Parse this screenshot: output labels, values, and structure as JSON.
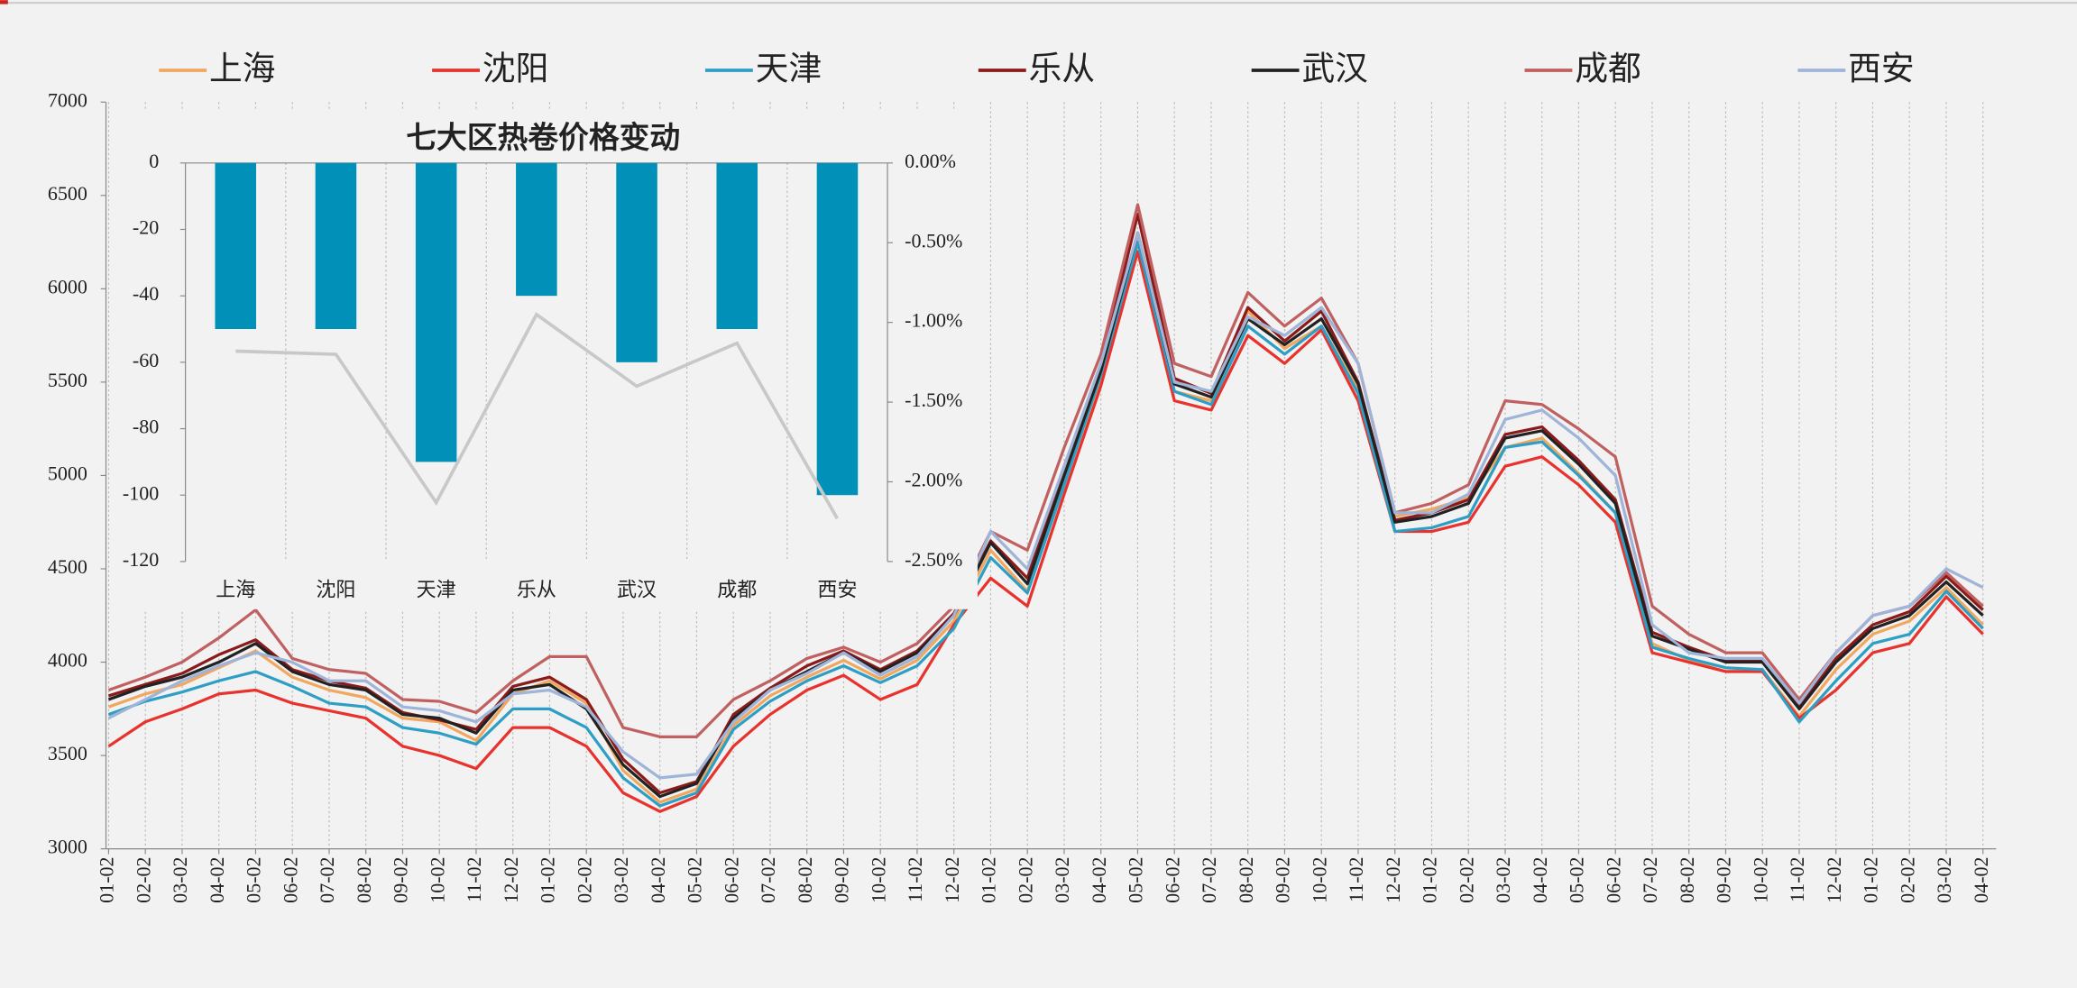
{
  "chart_data": [
    {
      "type": "line",
      "categories": [
        "01-02",
        "02-02",
        "03-02",
        "04-02",
        "05-02",
        "06-02",
        "07-02",
        "08-02",
        "09-02",
        "10-02",
        "11-02",
        "12-02",
        "01-02",
        "02-02",
        "03-02",
        "04-02",
        "05-02",
        "06-02",
        "07-02",
        "08-02",
        "09-02",
        "10-02",
        "11-02",
        "12-02",
        "01-02",
        "02-02",
        "03-02",
        "04-02",
        "05-02",
        "06-02",
        "07-02",
        "08-02",
        "09-02",
        "10-02",
        "11-02",
        "12-02",
        "01-02",
        "02-02",
        "03-02",
        "04-02",
        "05-02",
        "06-02",
        "07-02",
        "08-02",
        "09-02",
        "10-02",
        "11-02",
        "12-02",
        "01-02",
        "02-02",
        "03-02",
        "04-02"
      ],
      "ylim": [
        3000,
        7000
      ],
      "yticks": [
        3000,
        3500,
        4000,
        4500,
        5000,
        5500,
        6000,
        6500,
        7000
      ],
      "grid": "x",
      "legend": "top",
      "series": [
        {
          "name": "上海",
          "color": "#f0a860",
          "values": [
            3760,
            3830,
            3880,
            3970,
            4060,
            3920,
            3850,
            3810,
            3700,
            3680,
            3580,
            3830,
            3900,
            3780,
            3420,
            3250,
            3320,
            3660,
            3820,
            3920,
            4010,
            3910,
            4010,
            4220,
            4600,
            4380,
            4960,
            5520,
            6250,
            5450,
            5400,
            5880,
            5680,
            5800,
            5460,
            4780,
            4820,
            4880,
            5150,
            5200,
            5010,
            4800,
            4100,
            4010,
            3950,
            3960,
            3710,
            3960,
            4150,
            4220,
            4400,
            4200
          ]
        },
        {
          "name": "沈阳",
          "color": "#e8322d",
          "values": [
            3550,
            3680,
            3750,
            3830,
            3850,
            3780,
            3740,
            3700,
            3550,
            3500,
            3430,
            3650,
            3650,
            3550,
            3300,
            3200,
            3280,
            3550,
            3720,
            3850,
            3930,
            3800,
            3880,
            4200,
            4450,
            4300,
            4900,
            5480,
            6200,
            5400,
            5350,
            5750,
            5600,
            5780,
            5400,
            4700,
            4700,
            4750,
            5050,
            5100,
            4950,
            4750,
            4050,
            4000,
            3950,
            3950,
            3700,
            3850,
            4050,
            4100,
            4350,
            4150
          ]
        },
        {
          "name": "天津",
          "color": "#2e9ec4",
          "values": [
            3720,
            3790,
            3840,
            3900,
            3950,
            3870,
            3780,
            3760,
            3650,
            3620,
            3560,
            3750,
            3750,
            3650,
            3380,
            3230,
            3300,
            3640,
            3790,
            3900,
            3980,
            3890,
            3980,
            4180,
            4560,
            4370,
            4950,
            5540,
            6250,
            5450,
            5380,
            5800,
            5650,
            5800,
            5440,
            4700,
            4720,
            4780,
            5150,
            5180,
            5000,
            4800,
            4080,
            4020,
            3970,
            3960,
            3680,
            3900,
            4100,
            4150,
            4380,
            4180
          ]
        },
        {
          "name": "乐从",
          "color": "#8b1a1a",
          "values": [
            3820,
            3880,
            3940,
            4040,
            4120,
            3960,
            3900,
            3860,
            3730,
            3690,
            3640,
            3870,
            3920,
            3800,
            3480,
            3300,
            3360,
            3720,
            3860,
            3980,
            4060,
            3960,
            4060,
            4260,
            4650,
            4450,
            5050,
            5580,
            6400,
            5520,
            5440,
            5900,
            5720,
            5880,
            5500,
            4760,
            4800,
            4870,
            5220,
            5260,
            5080,
            4870,
            4160,
            4080,
            4010,
            4010,
            3760,
            4020,
            4200,
            4270,
            4460,
            4280
          ]
        },
        {
          "name": "武汉",
          "color": "#222222",
          "values": [
            3800,
            3870,
            3920,
            4000,
            4100,
            3950,
            3880,
            3850,
            3720,
            3700,
            3620,
            3850,
            3880,
            3750,
            3450,
            3280,
            3350,
            3700,
            3850,
            3950,
            4050,
            3950,
            4050,
            4250,
            4640,
            4420,
            5000,
            5560,
            6300,
            5490,
            5420,
            5840,
            5700,
            5840,
            5490,
            4750,
            4780,
            4850,
            5200,
            5240,
            5060,
            4850,
            4140,
            4070,
            4000,
            4000,
            3750,
            4000,
            4180,
            4250,
            4430,
            4250
          ]
        },
        {
          "name": "成都",
          "color": "#c06060",
          "values": [
            3850,
            3920,
            4000,
            4130,
            4280,
            4020,
            3960,
            3940,
            3800,
            3790,
            3730,
            3900,
            4030,
            4030,
            3650,
            3600,
            3600,
            3800,
            3900,
            4020,
            4080,
            4000,
            4100,
            4300,
            4700,
            4600,
            5150,
            5650,
            6450,
            5600,
            5530,
            5980,
            5800,
            5950,
            5600,
            4800,
            4850,
            4950,
            5400,
            5380,
            5250,
            5100,
            4300,
            4150,
            4050,
            4050,
            3800,
            4050,
            4250,
            4300,
            4480,
            4300
          ]
        },
        {
          "name": "西安",
          "color": "#9eb4d8",
          "values": [
            3700,
            3800,
            3900,
            3980,
            4050,
            4000,
            3900,
            3900,
            3760,
            3740,
            3680,
            3830,
            3850,
            3760,
            3520,
            3380,
            3400,
            3680,
            3850,
            3940,
            4050,
            3930,
            4030,
            4250,
            4700,
            4500,
            5050,
            5600,
            6300,
            5500,
            5450,
            5850,
            5750,
            5900,
            5600,
            4800,
            4800,
            4900,
            5300,
            5350,
            5200,
            5000,
            4200,
            4050,
            4020,
            4020,
            3780,
            4050,
            4250,
            4300,
            4500,
            4400
          ]
        }
      ]
    },
    {
      "type": "bar",
      "title": "七大区热卷价格变动",
      "categories": [
        "上海",
        "沈阳",
        "天津",
        "乐从",
        "武汉",
        "成都",
        "西安"
      ],
      "ylim": [
        -120,
        0
      ],
      "yticks": [
        -120,
        -100,
        -80,
        -60,
        -40,
        -20,
        0
      ],
      "y2lim": [
        -2.5,
        0
      ],
      "y2ticks": [
        {
          "value": -2.5,
          "label": "-2.50%"
        },
        {
          "value": -2.0,
          "label": "-2.00%"
        },
        {
          "value": -1.5,
          "label": "-1.50%"
        },
        {
          "value": -1.0,
          "label": "-1.00%"
        },
        {
          "value": -0.5,
          "label": "-0.50%"
        },
        {
          "value": 0,
          "label": "0.00%"
        }
      ],
      "series": [
        {
          "type": "bar",
          "color": "#0090b8",
          "values": [
            -50,
            -50,
            -90,
            -40,
            -60,
            -50,
            -100
          ]
        },
        {
          "type": "line",
          "axis": "y2",
          "color": "#c8c8c8",
          "values": [
            -1.18,
            -1.2,
            -2.13,
            -0.95,
            -1.4,
            -1.13,
            -2.23
          ]
        }
      ]
    }
  ]
}
